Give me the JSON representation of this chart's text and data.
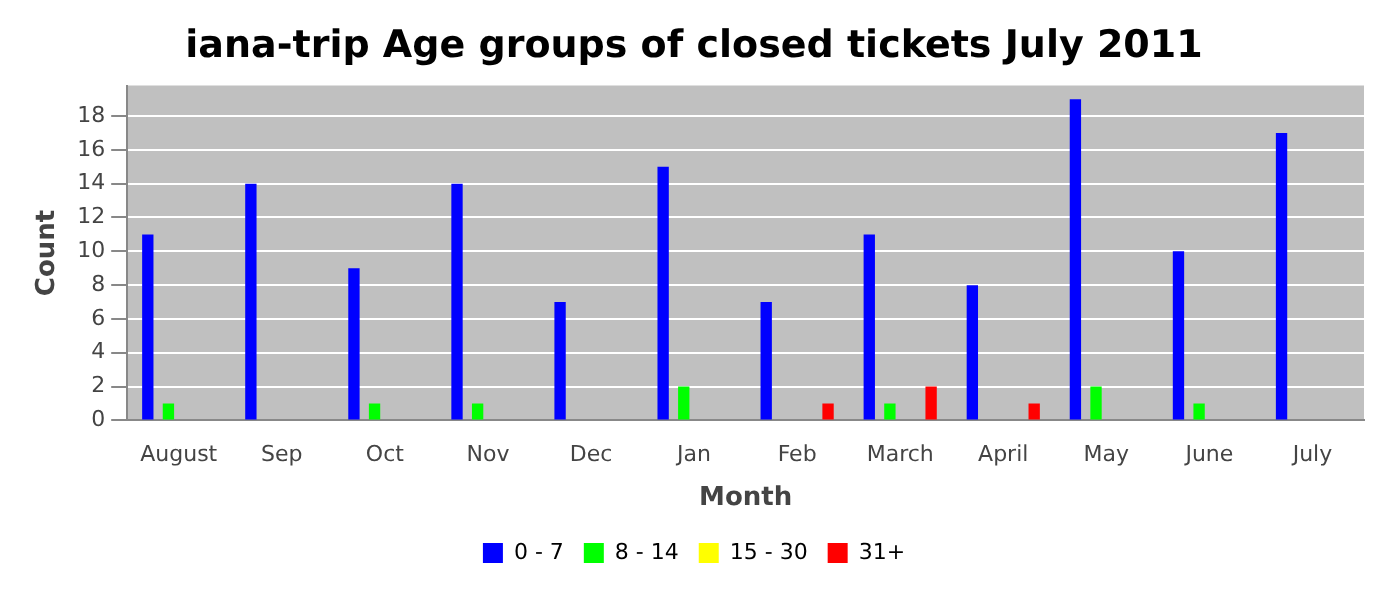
{
  "chart_data": {
    "type": "bar",
    "title": "iana-trip Age groups of closed tickets July 2011",
    "xlabel": "Month",
    "ylabel": "Count",
    "categories": [
      "August",
      "Sep",
      "Oct",
      "Nov",
      "Dec",
      "Jan",
      "Feb",
      "March",
      "April",
      "May",
      "June",
      "July"
    ],
    "series": [
      {
        "name": "0 - 7",
        "color": "#0000ff",
        "values": [
          11,
          14,
          9,
          14,
          7,
          15,
          7,
          11,
          8,
          19,
          10,
          17
        ]
      },
      {
        "name": "8 - 14",
        "color": "#00ff00",
        "values": [
          1,
          0,
          1,
          1,
          0,
          2,
          0,
          1,
          0,
          2,
          1,
          0
        ]
      },
      {
        "name": "15 - 30",
        "color": "#ffff00",
        "values": [
          0,
          0,
          0,
          0,
          0,
          0,
          0,
          0,
          0,
          0,
          0,
          0
        ]
      },
      {
        "name": "31+",
        "color": "#ff0000",
        "values": [
          0,
          0,
          0,
          0,
          0,
          0,
          1,
          2,
          1,
          0,
          0,
          0
        ]
      }
    ],
    "ylim": [
      0,
      19.8
    ],
    "yticks": [
      0,
      2,
      4,
      6,
      8,
      10,
      12,
      14,
      16,
      18
    ],
    "grid": "y",
    "legend": "bottom"
  }
}
